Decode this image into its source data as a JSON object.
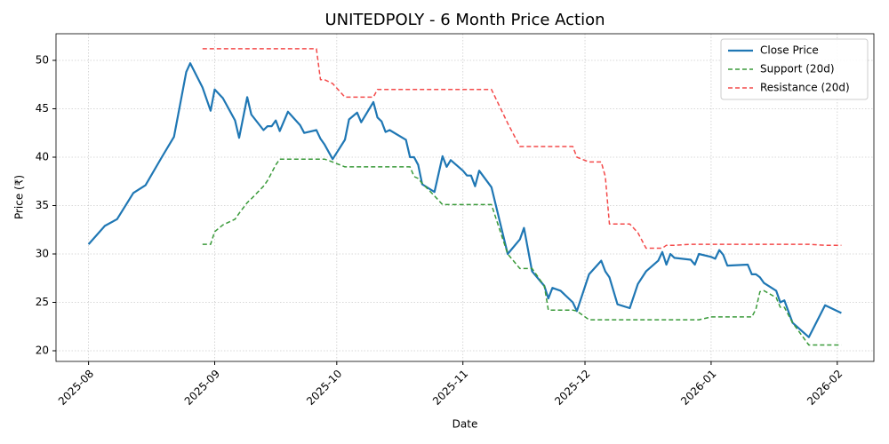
{
  "chart_data": {
    "type": "line",
    "title": "UNITEDPOLY - 6 Month Price Action",
    "x_label": "Date",
    "y_label": "Price (₹)",
    "xlim": [
      "2025-07-24",
      "2026-02-10"
    ],
    "xticks": [
      {
        "value": "2025-08-01",
        "label": "2025-08"
      },
      {
        "value": "2025-09-01",
        "label": "2025-09"
      },
      {
        "value": "2025-10-01",
        "label": "2025-10"
      },
      {
        "value": "2025-11-01",
        "label": "2025-11"
      },
      {
        "value": "2025-12-01",
        "label": "2025-12"
      },
      {
        "value": "2026-01-01",
        "label": "2026-01"
      },
      {
        "value": "2026-02-01",
        "label": "2026-02"
      }
    ],
    "ylim": [
      18.9,
      52.75
    ],
    "yticks": [
      20,
      25,
      30,
      35,
      40,
      45,
      50
    ],
    "grid": true,
    "legend": "upper right",
    "x": [
      "2025-08-01",
      "2025-08-05",
      "2025-08-08",
      "2025-08-12",
      "2025-08-15",
      "2025-08-19",
      "2025-08-22",
      "2025-08-25",
      "2025-08-26",
      "2025-08-29",
      "2025-08-31",
      "2025-09-01",
      "2025-09-03",
      "2025-09-06",
      "2025-09-07",
      "2025-09-09",
      "2025-09-10",
      "2025-09-13",
      "2025-09-14",
      "2025-09-15",
      "2025-09-16",
      "2025-09-17",
      "2025-09-19",
      "2025-09-22",
      "2025-09-23",
      "2025-09-26",
      "2025-09-27",
      "2025-09-28",
      "2025-09-30",
      "2025-10-03",
      "2025-10-04",
      "2025-10-06",
      "2025-10-07",
      "2025-10-10",
      "2025-10-11",
      "2025-10-12",
      "2025-10-13",
      "2025-10-14",
      "2025-10-18",
      "2025-10-19",
      "2025-10-20",
      "2025-10-21",
      "2025-10-22",
      "2025-10-25",
      "2025-10-27",
      "2025-10-28",
      "2025-10-29",
      "2025-11-01",
      "2025-11-02",
      "2025-11-03",
      "2025-11-04",
      "2025-11-05",
      "2025-11-08",
      "2025-11-12",
      "2025-11-15",
      "2025-11-16",
      "2025-11-18",
      "2025-11-21",
      "2025-11-22",
      "2025-11-23",
      "2025-11-25",
      "2025-11-28",
      "2025-11-29",
      "2025-12-02",
      "2025-12-05",
      "2025-12-06",
      "2025-12-07",
      "2025-12-09",
      "2025-12-12",
      "2025-12-14",
      "2025-12-16",
      "2025-12-19",
      "2025-12-20",
      "2025-12-21",
      "2025-12-22",
      "2025-12-23",
      "2025-12-27",
      "2025-12-28",
      "2025-12-29",
      "2026-01-01",
      "2026-01-02",
      "2026-01-03",
      "2026-01-04",
      "2026-01-05",
      "2026-01-10",
      "2026-01-11",
      "2026-01-12",
      "2026-01-13",
      "2026-01-14",
      "2026-01-17",
      "2026-01-18",
      "2026-01-19",
      "2026-01-21",
      "2026-01-25",
      "2026-01-29",
      "2026-02-02"
    ],
    "series": [
      {
        "name": "Close Price",
        "color": "#1f77b4",
        "dash": "solid",
        "values": [
          31.0,
          32.9,
          33.6,
          36.3,
          37.1,
          40.0,
          42.1,
          48.8,
          49.7,
          47.2,
          44.8,
          47.0,
          46.1,
          43.8,
          42.0,
          46.2,
          44.4,
          42.8,
          43.2,
          43.2,
          43.8,
          42.7,
          44.7,
          43.3,
          42.5,
          42.8,
          41.9,
          41.3,
          39.8,
          41.8,
          43.9,
          44.6,
          43.6,
          45.7,
          44.1,
          43.7,
          42.6,
          42.8,
          41.8,
          40.0,
          40.0,
          39.2,
          37.2,
          36.4,
          40.1,
          39.0,
          39.7,
          38.6,
          38.1,
          38.1,
          37.0,
          38.6,
          36.9,
          30.0,
          31.5,
          32.7,
          28.2,
          26.7,
          25.4,
          26.5,
          26.2,
          25.0,
          24.1,
          27.9,
          29.3,
          28.2,
          27.6,
          24.8,
          24.4,
          26.9,
          28.2,
          29.3,
          30.2,
          28.9,
          30.0,
          29.6,
          29.4,
          28.9,
          30.0,
          29.7,
          29.5,
          30.4,
          29.9,
          28.8,
          28.9,
          27.9,
          27.9,
          27.6,
          27.0,
          26.2,
          25.0,
          25.2,
          22.9,
          21.4,
          24.7,
          23.9
        ]
      },
      {
        "name": "Support (20d)",
        "color": "#3a9a3a",
        "dash": "dashed",
        "values": [
          null,
          null,
          null,
          null,
          null,
          null,
          null,
          null,
          null,
          31.0,
          31.0,
          32.3,
          33.0,
          33.6,
          34.2,
          35.3,
          35.7,
          37.0,
          37.6,
          38.4,
          39.2,
          39.8,
          39.8,
          39.8,
          39.8,
          39.8,
          39.8,
          39.8,
          39.5,
          39.0,
          39.0,
          39.0,
          39.0,
          39.0,
          39.0,
          39.0,
          39.0,
          39.0,
          39.0,
          39.0,
          38.0,
          37.8,
          37.3,
          36.0,
          35.1,
          35.1,
          35.1,
          35.1,
          35.1,
          35.1,
          35.1,
          35.1,
          35.1,
          30.0,
          28.5,
          28.5,
          28.5,
          26.7,
          24.2,
          24.2,
          24.2,
          24.2,
          24.1,
          23.2,
          23.2,
          23.2,
          23.2,
          23.2,
          23.2,
          23.2,
          23.2,
          23.2,
          23.2,
          23.2,
          23.2,
          23.2,
          23.2,
          23.2,
          23.2,
          23.5,
          23.5,
          23.5,
          23.5,
          23.5,
          23.5,
          23.5,
          24.3,
          26.1,
          26.2,
          25.5,
          24.5,
          24.5,
          22.9,
          20.6,
          20.6,
          20.6
        ]
      },
      {
        "name": "Resistance (20d)",
        "color": "#f44a4a",
        "dash": "dashed",
        "values": [
          null,
          null,
          null,
          null,
          null,
          null,
          null,
          null,
          null,
          51.2,
          51.2,
          51.2,
          51.2,
          51.2,
          51.2,
          51.2,
          51.2,
          51.2,
          51.2,
          51.2,
          51.2,
          51.2,
          51.2,
          51.2,
          51.2,
          51.2,
          48.0,
          48.0,
          47.6,
          46.2,
          46.2,
          46.2,
          46.2,
          46.2,
          47.0,
          47.0,
          47.0,
          47.0,
          47.0,
          47.0,
          47.0,
          47.0,
          47.0,
          47.0,
          47.0,
          47.0,
          47.0,
          47.0,
          47.0,
          47.0,
          47.0,
          47.0,
          47.0,
          43.5,
          41.1,
          41.1,
          41.1,
          41.1,
          41.1,
          41.1,
          41.1,
          41.1,
          40.0,
          39.5,
          39.5,
          38.0,
          33.1,
          33.1,
          33.1,
          32.2,
          30.6,
          30.6,
          30.6,
          30.9,
          30.9,
          30.9,
          31.0,
          31.0,
          31.0,
          31.0,
          31.0,
          31.0,
          31.0,
          31.0,
          31.0,
          31.0,
          31.0,
          31.0,
          31.0,
          31.0,
          31.0,
          31.0,
          31.0,
          31.0,
          30.9,
          30.9
        ]
      }
    ]
  }
}
